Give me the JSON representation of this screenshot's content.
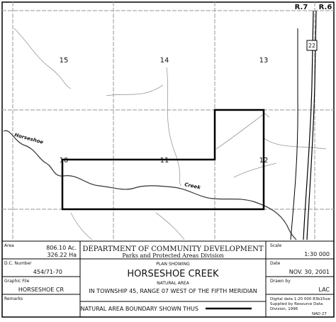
{
  "map": {
    "range_labels": [
      "R.7",
      "R.6"
    ],
    "highway": "22",
    "sections": [
      "15",
      "14",
      "13",
      "10",
      "11",
      "12"
    ],
    "creek_labels": [
      "Horseshoe",
      "Creek"
    ]
  },
  "title_block": {
    "area_label": "Area",
    "area_acres": "806.10 Ac.",
    "area_hectares": "326.22 Ha",
    "dc_label": "D.C. Number",
    "dc_number": "454/71-70",
    "file_label": "Graphic File",
    "file_name": "HORSESHOE CR",
    "remarks_label": "Remarks",
    "department": "DEPARTMENT OF COMMUNITY DEVELOPMENT",
    "division": "Parks and Protected Areas Division",
    "plan_showing": "PLAN SHOWING",
    "name": "HORSESHOE CREEK",
    "natural_area": "NATURAL AREA",
    "location": "IN TOWNSHIP 45,  RANGE 07  WEST OF THE FIFTH MERIDIAN",
    "scale_label": "Scale",
    "scale": "1:30 000",
    "date_label": "Date",
    "date": "NOV. 30, 2001",
    "drawn_label": "Drawn by",
    "drawn_by": "LAC",
    "source_lines": [
      "Digital data 1:20 000  83b15sw",
      "Supplied by Resource Data",
      "Division, 1996",
      "NAD 27"
    ],
    "legend": "NATURAL AREA BOUNDARY SHOWN THUS"
  }
}
